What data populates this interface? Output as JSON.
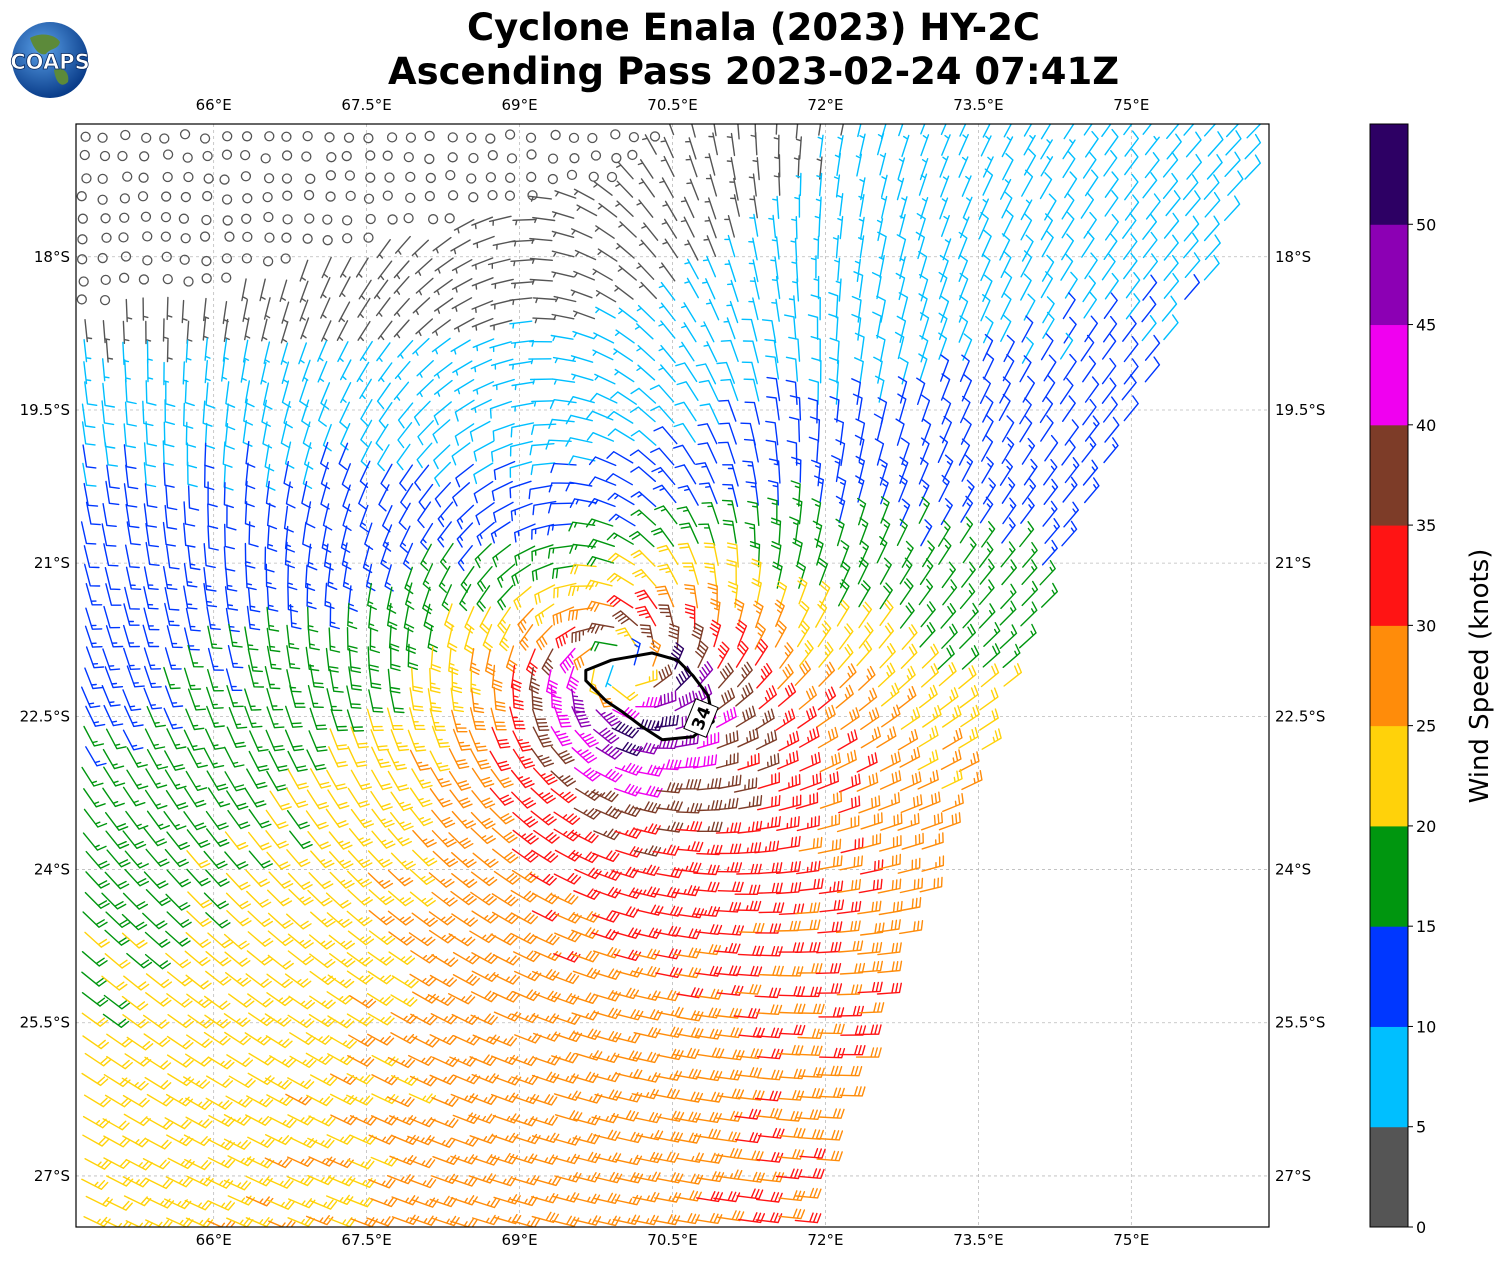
{
  "title_line1": "Cyclone Enala (2023) HY-2C",
  "title_line2": "Ascending Pass 2023-02-24 07:41Z",
  "logo_text": "COAPS",
  "contour_label": "34",
  "colorbar": {
    "label": "Wind Speed (knots)",
    "ticks": [
      "0",
      "5",
      "10",
      "15",
      "20",
      "25",
      "30",
      "35",
      "40",
      "45",
      "50"
    ],
    "colors": [
      "#555555",
      "#00BFFF",
      "#0037FF",
      "#00960F",
      "#FFD20A",
      "#FF8C0A",
      "#FF1414",
      "#7D3C28",
      "#F000F0",
      "#8C00B4",
      "#2D0064"
    ],
    "range": [
      0,
      55
    ]
  },
  "chart_data": {
    "type": "wind barb map",
    "title": "Cyclone Enala (2023) HY-2C Ascending Pass 2023-02-24 07:41Z",
    "x_ticks": [
      "66°E",
      "67.5°E",
      "69°E",
      "70.5°E",
      "72°E",
      "73.5°E",
      "75°E"
    ],
    "x_values": [
      66,
      67.5,
      69,
      70.5,
      72,
      73.5,
      75
    ],
    "y_ticks": [
      "18°S",
      "19.5°S",
      "21°S",
      "22.5°S",
      "24°S",
      "25.5°S",
      "27°S"
    ],
    "y_values": [
      -18,
      -19.5,
      -21,
      -22.5,
      -24,
      -25.5,
      -27
    ],
    "xlim": [
      64.65,
      76.35
    ],
    "ylim": [
      -27.5,
      -16.7
    ],
    "grid": true,
    "center": {
      "lon": 70.0,
      "lat": -22.1
    },
    "max_wind_knots": 45,
    "contour_34kt": [
      [
        69.65,
        -22.05
      ],
      [
        69.9,
        -21.95
      ],
      [
        70.3,
        -21.88
      ],
      [
        70.55,
        -21.95
      ],
      [
        70.7,
        -22.1
      ],
      [
        70.85,
        -22.3
      ],
      [
        70.9,
        -22.55
      ],
      [
        70.7,
        -22.7
      ],
      [
        70.4,
        -22.73
      ],
      [
        70.2,
        -22.6
      ],
      [
        70.0,
        -22.45
      ],
      [
        69.85,
        -22.35
      ],
      [
        69.75,
        -22.25
      ],
      [
        69.65,
        -22.15
      ]
    ],
    "swath_edge": [
      [
        76.35,
        -16.7
      ],
      [
        76.2,
        -17.1
      ],
      [
        75.7,
        -18.3
      ],
      [
        75.0,
        -19.6
      ],
      [
        74.4,
        -20.8
      ],
      [
        73.9,
        -22.0
      ],
      [
        73.3,
        -23.4
      ],
      [
        72.8,
        -24.6
      ],
      [
        72.3,
        -25.9
      ],
      [
        71.9,
        -27.0
      ],
      [
        71.7,
        -27.5
      ]
    ]
  }
}
